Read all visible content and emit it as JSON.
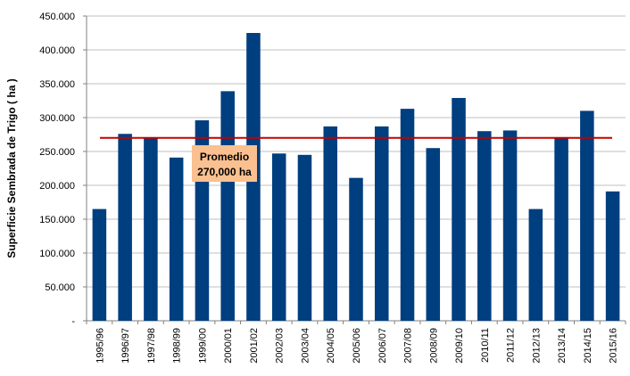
{
  "chart_data": {
    "type": "bar",
    "ylabel": "Superficie Sembrada de Trigo ( ha )",
    "xlabel": "",
    "title": "",
    "ylim": [
      0,
      450000
    ],
    "yticks": [
      0,
      50000,
      100000,
      150000,
      200000,
      250000,
      300000,
      350000,
      400000,
      450000
    ],
    "ytick_labels": [
      "-",
      "50.000",
      "100.000",
      "150.000",
      "200.000",
      "250.000",
      "300.000",
      "350.000",
      "400.000",
      "450.000"
    ],
    "grid": true,
    "categories": [
      "1995/96",
      "1996/97",
      "1997/98",
      "1998/99",
      "1999/00",
      "2000/01",
      "2001/02",
      "2002/03",
      "2003/04",
      "2004/05",
      "2005/06",
      "2006/07",
      "2007/08",
      "2008/09",
      "2009/10",
      "2010/11",
      "2011/12",
      "2012/13",
      "2013/14",
      "2014/15",
      "2015/16"
    ],
    "values": [
      165000,
      276000,
      271000,
      241000,
      296000,
      339000,
      425000,
      247000,
      245000,
      287000,
      211000,
      287000,
      313000,
      255000,
      329000,
      280000,
      281000,
      165000,
      271000,
      310000,
      191000
    ],
    "bar_color": "#003F7F",
    "reference_line": {
      "value": 270000,
      "color": "#C00000"
    },
    "annotation": {
      "line1": "Promedio",
      "line2": "270,000 ha",
      "background": "#FAC090"
    }
  }
}
